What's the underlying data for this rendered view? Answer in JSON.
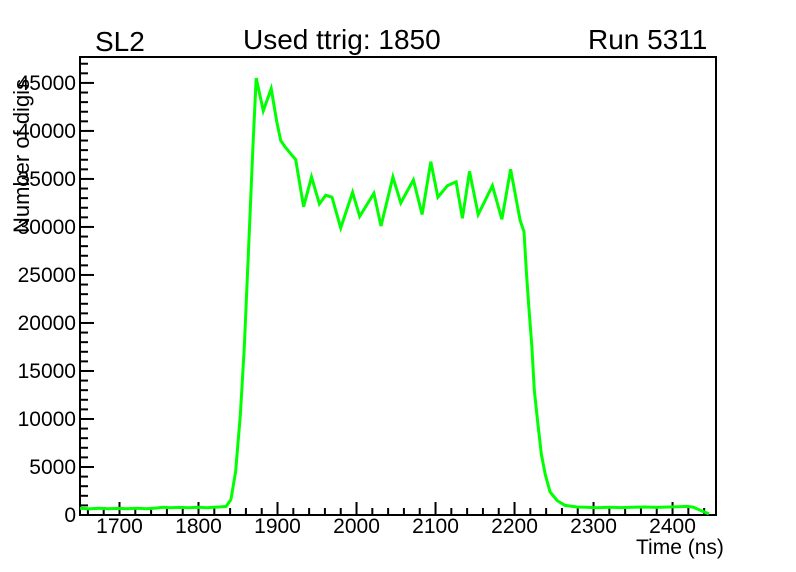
{
  "header": {
    "left": "SL2",
    "center": "Used ttrig: 1850",
    "right": "Run 5311"
  },
  "chart_data": {
    "type": "line",
    "title": "Used ttrig: 1850",
    "xlabel": "Time (ns)",
    "ylabel": "Number of digis",
    "xlim": [
      1650,
      2455
    ],
    "ylim": [
      0,
      47700
    ],
    "x_major_ticks": [
      1700,
      1800,
      1900,
      2000,
      2100,
      2200,
      2300,
      2400
    ],
    "x_minor_step": 20,
    "y_major_ticks": [
      0,
      5000,
      10000,
      15000,
      20000,
      25000,
      30000,
      35000,
      40000,
      45000
    ],
    "y_minor_step": 1000,
    "grid": false,
    "legend": false,
    "line_color": "#00ff00",
    "background": "#ffffff",
    "points": [
      [
        1650,
        700
      ],
      [
        1662,
        640
      ],
      [
        1674,
        700
      ],
      [
        1686,
        650
      ],
      [
        1698,
        690
      ],
      [
        1710,
        660
      ],
      [
        1722,
        700
      ],
      [
        1734,
        650
      ],
      [
        1746,
        720
      ],
      [
        1755,
        800
      ],
      [
        1764,
        750
      ],
      [
        1776,
        790
      ],
      [
        1788,
        750
      ],
      [
        1800,
        800
      ],
      [
        1810,
        760
      ],
      [
        1820,
        800
      ],
      [
        1828,
        840
      ],
      [
        1835,
        900
      ],
      [
        1841,
        1600
      ],
      [
        1847,
        4500
      ],
      [
        1853,
        10500
      ],
      [
        1858,
        17500
      ],
      [
        1864,
        29000
      ],
      [
        1869,
        38500
      ],
      [
        1873,
        45500
      ],
      [
        1882,
        42100
      ],
      [
        1892,
        44400
      ],
      [
        1899,
        41000
      ],
      [
        1904,
        39000
      ],
      [
        1910,
        38300
      ],
      [
        1918,
        37500
      ],
      [
        1923,
        37000
      ],
      [
        1933,
        32100
      ],
      [
        1943,
        35200
      ],
      [
        1953,
        32400
      ],
      [
        1961,
        33300
      ],
      [
        1969,
        33100
      ],
      [
        1980,
        29900
      ],
      [
        1995,
        33600
      ],
      [
        2004,
        31100
      ],
      [
        2022,
        33500
      ],
      [
        2031,
        30100
      ],
      [
        2046,
        35200
      ],
      [
        2056,
        32500
      ],
      [
        2072,
        34900
      ],
      [
        2083,
        31300
      ],
      [
        2094,
        36800
      ],
      [
        2103,
        33100
      ],
      [
        2115,
        34300
      ],
      [
        2126,
        34700
      ],
      [
        2134,
        30900
      ],
      [
        2143,
        35800
      ],
      [
        2154,
        31300
      ],
      [
        2172,
        34300
      ],
      [
        2184,
        30800
      ],
      [
        2195,
        36000
      ],
      [
        2207,
        30700
      ],
      [
        2212,
        29500
      ],
      [
        2215,
        25300
      ],
      [
        2218,
        21700
      ],
      [
        2222,
        17500
      ],
      [
        2225,
        13000
      ],
      [
        2230,
        9200
      ],
      [
        2234,
        6300
      ],
      [
        2239,
        4200
      ],
      [
        2245,
        2400
      ],
      [
        2254,
        1500
      ],
      [
        2264,
        1000
      ],
      [
        2279,
        830
      ],
      [
        2290,
        800
      ],
      [
        2305,
        760
      ],
      [
        2320,
        800
      ],
      [
        2335,
        770
      ],
      [
        2350,
        810
      ],
      [
        2365,
        830
      ],
      [
        2380,
        790
      ],
      [
        2395,
        830
      ],
      [
        2408,
        860
      ],
      [
        2418,
        900
      ],
      [
        2426,
        820
      ],
      [
        2436,
        460
      ],
      [
        2446,
        120
      ]
    ]
  }
}
